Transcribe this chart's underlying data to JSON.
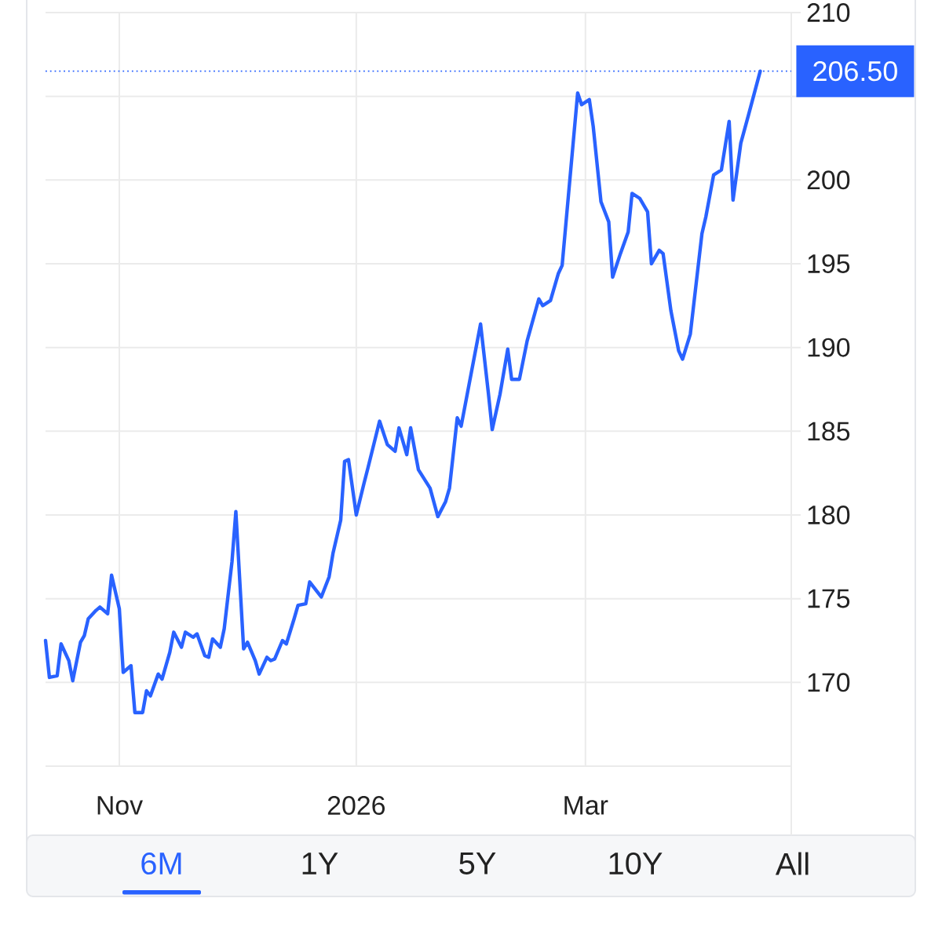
{
  "chart_data": {
    "type": "line",
    "x": [
      "2025-10-13",
      "2025-10-14",
      "2025-10-16",
      "2025-10-17",
      "2025-10-19",
      "2025-10-20",
      "2025-10-22",
      "2025-10-23",
      "2025-10-24",
      "2025-10-26",
      "2025-10-27",
      "2025-10-29",
      "2025-10-30",
      "2025-11-01",
      "2025-11-02",
      "2025-11-04",
      "2025-11-05",
      "2025-11-07",
      "2025-11-08",
      "2025-11-09",
      "2025-11-11",
      "2025-11-12",
      "2025-11-14",
      "2025-11-15",
      "2025-11-17",
      "2025-11-18",
      "2025-11-20",
      "2025-11-21",
      "2025-11-23",
      "2025-11-24",
      "2025-11-25",
      "2025-11-27",
      "2025-11-28",
      "2025-11-30",
      "2025-12-01",
      "2025-12-03",
      "2025-12-04",
      "2025-12-06",
      "2025-12-07",
      "2025-12-09",
      "2025-12-10",
      "2025-12-11",
      "2025-12-13",
      "2025-12-14",
      "2025-12-16",
      "2025-12-17",
      "2025-12-19",
      "2025-12-20",
      "2025-12-22",
      "2025-12-23",
      "2025-12-25",
      "2025-12-26",
      "2025-12-28",
      "2025-12-29",
      "2025-12-30",
      "2026-01-01",
      "2026-01-03",
      "2026-01-04",
      "2026-01-07",
      "2026-01-09",
      "2026-01-11",
      "2026-01-12",
      "2026-01-14",
      "2026-01-15",
      "2026-01-17",
      "2026-01-20",
      "2026-01-22",
      "2026-01-24",
      "2026-01-25",
      "2026-01-27",
      "2026-01-28",
      "2026-02-02",
      "2026-02-04",
      "2026-02-05",
      "2026-02-07",
      "2026-02-09",
      "2026-02-10",
      "2026-02-12",
      "2026-02-14",
      "2026-02-17",
      "2026-02-18",
      "2026-02-20",
      "2026-02-22",
      "2026-02-23",
      "2026-02-27",
      "2026-02-28",
      "2026-03-02",
      "2026-03-03",
      "2026-03-05",
      "2026-03-07",
      "2026-03-08",
      "2026-03-10",
      "2026-03-12",
      "2026-03-13",
      "2026-03-15",
      "2026-03-17",
      "2026-03-18",
      "2026-03-20",
      "2026-03-21",
      "2026-03-23",
      "2026-03-25",
      "2026-03-26",
      "2026-03-28",
      "2026-03-31",
      "2026-04-01",
      "2026-04-03",
      "2026-04-05",
      "2026-04-07",
      "2026-04-08",
      "2026-04-10",
      "2026-04-12",
      "2026-04-15"
    ],
    "values": [
      172.5,
      170.3,
      170.4,
      172.3,
      171.3,
      170.1,
      172.4,
      172.8,
      173.8,
      174.3,
      174.5,
      174.1,
      176.4,
      174.4,
      170.6,
      171.0,
      168.2,
      168.2,
      169.5,
      169.2,
      170.5,
      170.2,
      171.8,
      173.0,
      172.1,
      173.0,
      172.7,
      172.9,
      171.6,
      171.5,
      172.6,
      172.1,
      173.2,
      177.2,
      180.2,
      172.0,
      172.4,
      171.3,
      170.5,
      171.5,
      171.3,
      171.4,
      172.5,
      172.3,
      173.8,
      174.6,
      174.7,
      176.0,
      175.4,
      175.1,
      176.3,
      177.7,
      179.7,
      183.2,
      183.3,
      180.0,
      181.9,
      182.8,
      185.6,
      184.2,
      183.8,
      185.2,
      183.6,
      185.2,
      182.7,
      181.6,
      179.9,
      180.8,
      181.6,
      185.8,
      185.3,
      191.4,
      187.3,
      185.1,
      187.2,
      189.9,
      188.1,
      188.1,
      190.4,
      192.9,
      192.5,
      192.8,
      194.4,
      194.9,
      205.2,
      204.5,
      204.8,
      203.2,
      198.7,
      197.5,
      194.2,
      195.6,
      196.9,
      199.2,
      198.9,
      198.1,
      195.0,
      195.8,
      195.6,
      192.2,
      189.8,
      189.3,
      190.8,
      196.8,
      197.8,
      200.3,
      200.6,
      203.5,
      198.8,
      202.2,
      203.9,
      206.5
    ],
    "color": "#2962ff",
    "xlim": [
      "2025-10-13",
      "2026-04-23"
    ],
    "xticks": [
      {
        "value": "2025-11-01",
        "label": "Nov"
      },
      {
        "value": "2026-01-01",
        "label": "2026"
      },
      {
        "value": "2026-03-01",
        "label": "Mar"
      }
    ],
    "ylim": [
      165,
      210
    ],
    "yticks": [
      170,
      175,
      180,
      185,
      190,
      195,
      200,
      {
        "value": 205,
        "label": null
      },
      210
    ],
    "grid": true,
    "ref_lines": [
      {
        "axis": "y",
        "value": 206.5,
        "label": "206.50",
        "color": "#2962ff",
        "line_style": "dotted"
      }
    ],
    "annotations": [
      "6M",
      "1Y",
      "5Y",
      "10Y",
      "All"
    ]
  }
}
